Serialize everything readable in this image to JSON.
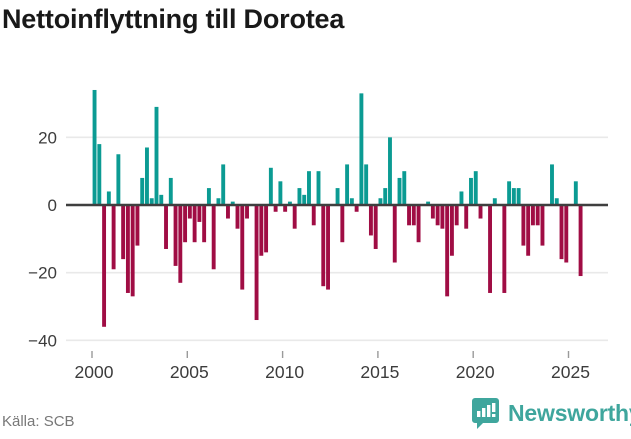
{
  "title": "Nettoinflyttning till Dorotea",
  "source": "Källa: SCB",
  "logo": {
    "text": "Newsworthy",
    "icon": "newsworthy-badge-bar-chart-exclamation"
  },
  "colors": {
    "positive_bar": "#0b9b93",
    "negative_bar": "#a00d44",
    "zero_line": "#3f3f3f",
    "gridline": "#e9e9e9",
    "tick_mark": "#9a9a9a",
    "axis_text": "#3c3c3c",
    "title_text": "#191919",
    "source_text": "#787878",
    "logo_teal": "#3fa69d"
  },
  "y_axis": {
    "ticks": [
      {
        "value": 20,
        "label": "20"
      },
      {
        "value": 0,
        "label": "0"
      },
      {
        "value": -20,
        "label": "−20"
      },
      {
        "value": -40,
        "label": "−40"
      }
    ]
  },
  "x_axis": {
    "tick_labels": [
      "2000",
      "2005",
      "2010",
      "2015",
      "2020",
      "2025"
    ]
  },
  "chart_data": {
    "type": "bar",
    "title": "Nettoinflyttning till Dorotea",
    "xlabel": "",
    "ylabel": "",
    "periodicity": "quarterly",
    "start_period": "2000Q1",
    "end_period": "2025Q3",
    "ylim": [
      -40,
      36
    ],
    "grid": "horizontal",
    "legend": "none",
    "positive_color": "#0b9b93",
    "negative_color": "#a00d44",
    "values": [
      34,
      18,
      -36,
      4,
      -19,
      15,
      -16,
      -26,
      -27,
      -12,
      8,
      17,
      2,
      29,
      3,
      -13,
      8,
      -18,
      -23,
      -11,
      -4,
      -11,
      -5,
      -11,
      5,
      -19,
      2,
      12,
      -4,
      1,
      -7,
      -25,
      -4,
      0,
      -34,
      -15,
      -14,
      11,
      -2,
      7,
      -2,
      1,
      -7,
      5,
      3,
      10,
      -6,
      10,
      -24,
      -25,
      0,
      5,
      -11,
      12,
      2,
      -2,
      33,
      12,
      -9,
      -13,
      2,
      5,
      20,
      -17,
      8,
      10,
      -6,
      -6,
      -11,
      0,
      1,
      -4,
      -6,
      -7,
      -27,
      -15,
      -6,
      4,
      -7,
      8,
      10,
      -4,
      0,
      -26,
      2,
      0,
      -26,
      7,
      5,
      5,
      -12,
      -15,
      -6,
      -6,
      -12,
      0,
      12,
      2,
      -16,
      -17,
      0,
      7,
      -21
    ]
  }
}
